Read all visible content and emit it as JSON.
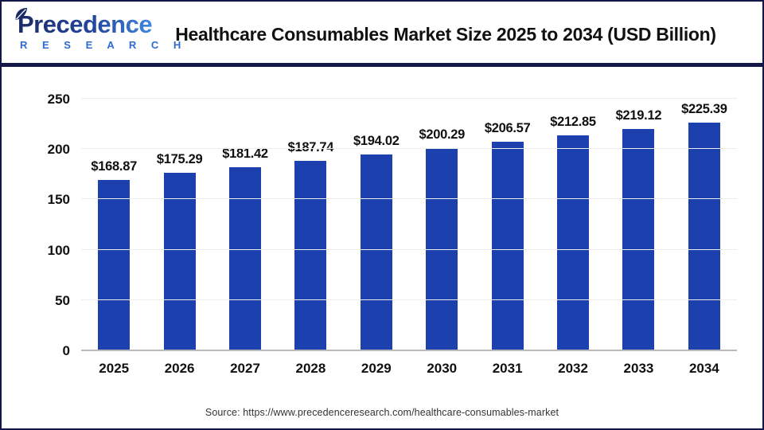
{
  "header": {
    "logo_line1": "Precedence",
    "logo_line2": "R E S E A R C H",
    "title": "Healthcare Consumables Market Size 2025 to 2034 (USD Billion)"
  },
  "chart_data": {
    "type": "bar",
    "title": "Healthcare Consumables Market Size 2025 to 2034 (USD Billion)",
    "categories": [
      "2025",
      "2026",
      "2027",
      "2028",
      "2029",
      "2030",
      "2031",
      "2032",
      "2033",
      "2034"
    ],
    "values": [
      168.87,
      175.29,
      181.42,
      187.74,
      194.02,
      200.29,
      206.57,
      212.85,
      219.12,
      225.39
    ],
    "value_labels": [
      "$168.87",
      "$175.29",
      "$181.42",
      "$187.74",
      "$194.02",
      "$200.29",
      "$206.57",
      "$212.85",
      "$219.12",
      "$225.39"
    ],
    "xlabel": "",
    "ylabel": "",
    "ylim": [
      0,
      250
    ],
    "yticks": [
      0,
      50,
      100,
      150,
      200,
      250
    ],
    "grid": true,
    "legend": "none",
    "bar_color": "#1c41ae"
  },
  "footer": {
    "source": "Source: https://www.precedenceresearch.com/healthcare-consumables-market"
  },
  "colors": {
    "bar": "#1c41ae",
    "frame_border": "#131747",
    "header_separator": "#141848",
    "gridline": "#ececec",
    "axis_baseline": "#b8b8b8",
    "text": "#111111",
    "source_text": "#333333",
    "logo_dark": "#1b2a66",
    "logo_light": "#3f86e0",
    "logo_research": "#2f6bd0"
  }
}
